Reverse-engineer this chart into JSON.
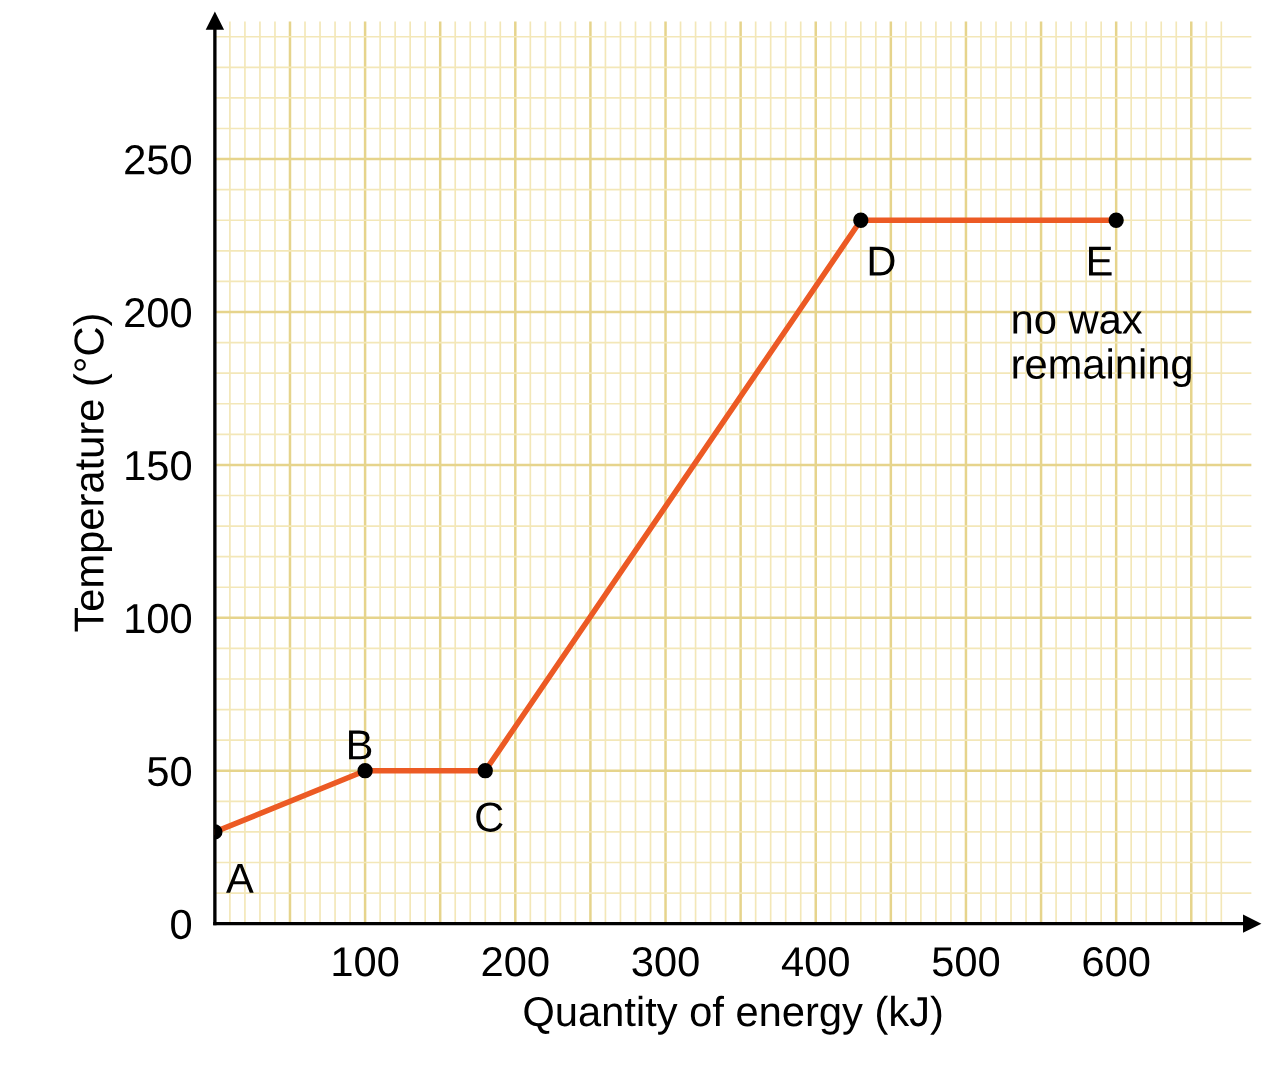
{
  "chart_data": {
    "type": "line",
    "xlabel": "Quantity of energy (kJ)",
    "ylabel": "Temperature (°C)",
    "x": [
      0,
      100,
      180,
      430,
      600
    ],
    "series": [
      {
        "color": "#ec5a24",
        "values": [
          30,
          50,
          50,
          230,
          230
        ]
      }
    ],
    "xlim": [
      0,
      690
    ],
    "ylim": [
      0,
      295
    ],
    "xticks": [
      {
        "value": 10,
        "label": null
      },
      {
        "value": 20,
        "label": null
      },
      {
        "value": 30,
        "label": null
      },
      {
        "value": 40,
        "label": null
      },
      {
        "value": 50,
        "label": null
      },
      {
        "value": 60,
        "label": null
      },
      {
        "value": 70,
        "label": null
      },
      {
        "value": 80,
        "label": null
      },
      {
        "value": 90,
        "label": null
      },
      100,
      {
        "value": 110,
        "label": null
      },
      {
        "value": 120,
        "label": null
      },
      {
        "value": 130,
        "label": null
      },
      {
        "value": 140,
        "label": null
      },
      {
        "value": 150,
        "label": null
      },
      {
        "value": 160,
        "label": null
      },
      {
        "value": 170,
        "label": null
      },
      {
        "value": 180,
        "label": null
      },
      {
        "value": 190,
        "label": null
      },
      200,
      {
        "value": 210,
        "label": null
      },
      {
        "value": 220,
        "label": null
      },
      {
        "value": 230,
        "label": null
      },
      {
        "value": 240,
        "label": null
      },
      {
        "value": 250,
        "label": null
      },
      {
        "value": 260,
        "label": null
      },
      {
        "value": 270,
        "label": null
      },
      {
        "value": 280,
        "label": null
      },
      {
        "value": 290,
        "label": null
      },
      300,
      {
        "value": 310,
        "label": null
      },
      {
        "value": 320,
        "label": null
      },
      {
        "value": 330,
        "label": null
      },
      {
        "value": 340,
        "label": null
      },
      {
        "value": 350,
        "label": null
      },
      {
        "value": 360,
        "label": null
      },
      {
        "value": 370,
        "label": null
      },
      {
        "value": 380,
        "label": null
      },
      {
        "value": 390,
        "label": null
      },
      400,
      {
        "value": 410,
        "label": null
      },
      {
        "value": 420,
        "label": null
      },
      {
        "value": 430,
        "label": null
      },
      {
        "value": 440,
        "label": null
      },
      {
        "value": 450,
        "label": null
      },
      {
        "value": 460,
        "label": null
      },
      {
        "value": 470,
        "label": null
      },
      {
        "value": 480,
        "label": null
      },
      {
        "value": 490,
        "label": null
      },
      500,
      {
        "value": 510,
        "label": null
      },
      {
        "value": 520,
        "label": null
      },
      {
        "value": 530,
        "label": null
      },
      {
        "value": 540,
        "label": null
      },
      {
        "value": 550,
        "label": null
      },
      {
        "value": 560,
        "label": null
      },
      {
        "value": 570,
        "label": null
      },
      {
        "value": 580,
        "label": null
      },
      {
        "value": 590,
        "label": null
      },
      600,
      {
        "value": 610,
        "label": null
      },
      {
        "value": 620,
        "label": null
      },
      {
        "value": 630,
        "label": null
      },
      {
        "value": 640,
        "label": null
      },
      {
        "value": 650,
        "label": null
      },
      {
        "value": 660,
        "label": null
      },
      {
        "value": 670,
        "label": null
      }
    ],
    "yticks": [
      0,
      {
        "value": 10,
        "label": null
      },
      {
        "value": 20,
        "label": null
      },
      {
        "value": 30,
        "label": null
      },
      {
        "value": 40,
        "label": null
      },
      50,
      {
        "value": 60,
        "label": null
      },
      {
        "value": 70,
        "label": null
      },
      {
        "value": 80,
        "label": null
      },
      {
        "value": 90,
        "label": null
      },
      100,
      {
        "value": 110,
        "label": null
      },
      {
        "value": 120,
        "label": null
      },
      {
        "value": 130,
        "label": null
      },
      {
        "value": 140,
        "label": null
      },
      150,
      {
        "value": 160,
        "label": null
      },
      {
        "value": 170,
        "label": null
      },
      {
        "value": 180,
        "label": null
      },
      {
        "value": 190,
        "label": null
      },
      200,
      {
        "value": 210,
        "label": null
      },
      {
        "value": 220,
        "label": null
      },
      {
        "value": 230,
        "label": null
      },
      {
        "value": 240,
        "label": null
      },
      250,
      {
        "value": 260,
        "label": null
      },
      {
        "value": 270,
        "label": null
      },
      {
        "value": 280,
        "label": null
      },
      {
        "value": 290,
        "label": null
      }
    ],
    "grid": true,
    "marker": "circle",
    "line_style": "solid",
    "annotations": [
      {
        "text": "A",
        "x": 0,
        "y": 30
      },
      {
        "text": "B",
        "x": 100,
        "y": 50
      },
      {
        "text": "C",
        "x": 180,
        "y": 50
      },
      {
        "text": "D",
        "x": 430,
        "y": 230
      },
      {
        "text": "E",
        "x": 600,
        "y": 230
      },
      {
        "text": "no wax\nremaining",
        "x": 600,
        "y": 230
      }
    ]
  }
}
